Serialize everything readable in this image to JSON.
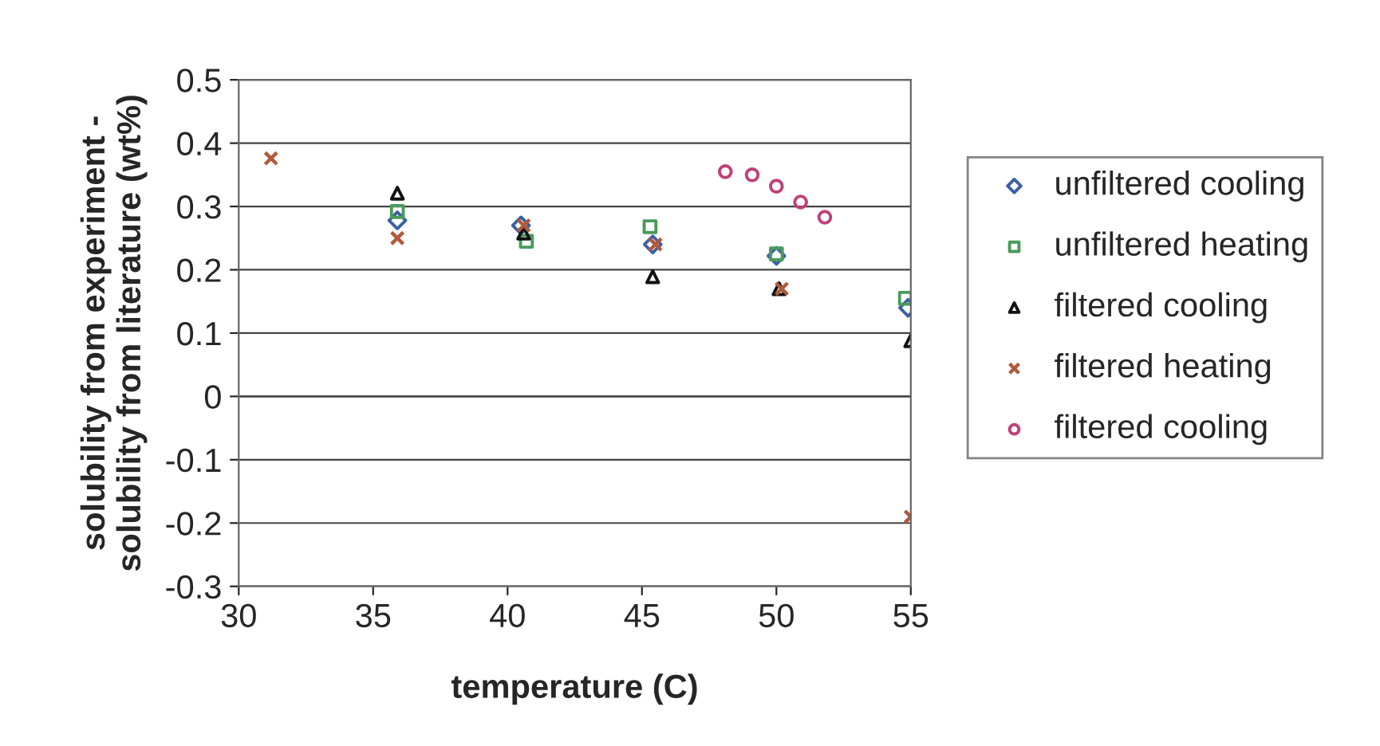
{
  "chart_data": {
    "type": "scatter",
    "xlabel": "temperature (C)",
    "ylabel": "solubility from experiment -\nsolubility from literature (wt%)",
    "xlim": [
      30,
      55
    ],
    "xticks": [
      30,
      35,
      40,
      45,
      50,
      55
    ],
    "ylim": [
      -0.3,
      0.5
    ],
    "yticks": [
      -0.3,
      -0.2,
      -0.1,
      0,
      0.1,
      0.2,
      0.3,
      0.4,
      0.5
    ],
    "grid": "y",
    "legend": "right",
    "series": [
      {
        "name": "unfiltered cooling",
        "color": "#3a5fa8",
        "marker": "diamond",
        "x": [
          35.9,
          40.5,
          45.4,
          50.0,
          54.9
        ],
        "values": [
          0.278,
          0.27,
          0.24,
          0.222,
          0.14
        ]
      },
      {
        "name": "unfiltered heating",
        "color": "#4a9a5a",
        "marker": "square",
        "x": [
          35.9,
          40.7,
          45.3,
          50.0,
          54.8
        ],
        "values": [
          0.292,
          0.245,
          0.268,
          0.225,
          0.155
        ]
      },
      {
        "name": "filtered cooling",
        "color": "#111111",
        "marker": "triangle",
        "x": [
          35.9,
          40.6,
          45.4,
          50.1,
          55.0
        ],
        "values": [
          0.321,
          0.258,
          0.189,
          0.17,
          0.088
        ]
      },
      {
        "name": "filtered heating",
        "color": "#b05a3c",
        "marker": "cross",
        "x": [
          31.2,
          35.9,
          40.6,
          45.5,
          50.2,
          55.0
        ],
        "values": [
          0.376,
          0.25,
          0.27,
          0.24,
          0.17,
          -0.19
        ]
      },
      {
        "name": "filtered cooling",
        "color": "#c0407a",
        "marker": "circle",
        "x": [
          48.1,
          49.1,
          50.0,
          50.9,
          51.8
        ],
        "values": [
          0.355,
          0.35,
          0.332,
          0.307,
          0.283
        ]
      }
    ]
  }
}
